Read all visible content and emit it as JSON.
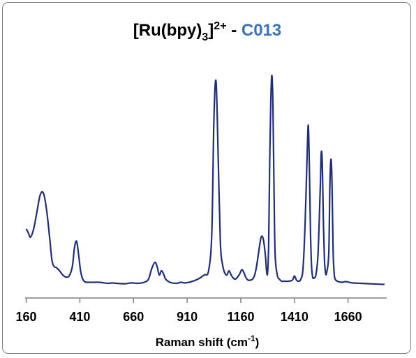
{
  "chart_data": {
    "type": "line",
    "title": {
      "main": "[Ru(bpy)",
      "sub": "3",
      "close": "]",
      "sup": "2+",
      "separator": " - ",
      "sample": "C013"
    },
    "title_colors": {
      "main": "#000000",
      "sample": "#3b73b9"
    },
    "xlabel": {
      "prefix": "Raman shift (cm",
      "sup": "-1",
      "suffix": ")"
    },
    "ylabel": "",
    "xlim": [
      155,
      1840
    ],
    "ylim": [
      0,
      1.03
    ],
    "xticks": [
      160,
      410,
      660,
      910,
      1160,
      1410,
      1660
    ],
    "xtick_labels": [
      "160",
      "410",
      "660",
      "910",
      "1160",
      "1410",
      "1660"
    ],
    "grid": false,
    "line_color": "#1f2f73",
    "series": [
      {
        "x": [
          160,
          170,
          180,
          195,
          210,
          225,
          240,
          255,
          270,
          280,
          290,
          300,
          315,
          330,
          345,
          360,
          375,
          385,
          395,
          405,
          415,
          430,
          460,
          500,
          540,
          560,
          580,
          620,
          650,
          680,
          710,
          730,
          745,
          760,
          770,
          780,
          790,
          800,
          810,
          830,
          860,
          880,
          900,
          930,
          960,
          990,
          1010,
          1025,
          1035,
          1045,
          1055,
          1065,
          1075,
          1085,
          1095,
          1105,
          1115,
          1125,
          1135,
          1145,
          1155,
          1165,
          1175,
          1185,
          1195,
          1205,
          1215,
          1225,
          1235,
          1245,
          1255,
          1265,
          1275,
          1280,
          1285,
          1290,
          1295,
          1300,
          1305,
          1310,
          1315,
          1320,
          1330,
          1340,
          1350,
          1360,
          1380,
          1400,
          1410,
          1420,
          1430,
          1440,
          1450,
          1460,
          1470,
          1475,
          1480,
          1485,
          1490,
          1495,
          1500,
          1510,
          1520,
          1530,
          1535,
          1540,
          1545,
          1550,
          1555,
          1560,
          1570,
          1575,
          1580,
          1585,
          1590,
          1595,
          1600,
          1610,
          1630,
          1650,
          1680,
          1720,
          1760,
          1800,
          1830
        ],
        "values": [
          0.27,
          0.25,
          0.23,
          0.27,
          0.35,
          0.43,
          0.44,
          0.36,
          0.22,
          0.12,
          0.09,
          0.085,
          0.07,
          0.05,
          0.04,
          0.045,
          0.09,
          0.18,
          0.21,
          0.14,
          0.06,
          0.02,
          0.015,
          0.015,
          0.01,
          0.012,
          0.01,
          0.008,
          0.012,
          0.01,
          0.015,
          0.03,
          0.08,
          0.11,
          0.09,
          0.05,
          0.07,
          0.055,
          0.03,
          0.015,
          0.01,
          0.015,
          0.012,
          0.018,
          0.03,
          0.05,
          0.07,
          0.25,
          0.8,
          0.97,
          0.6,
          0.2,
          0.1,
          0.06,
          0.05,
          0.07,
          0.05,
          0.035,
          0.03,
          0.04,
          0.055,
          0.075,
          0.06,
          0.035,
          0.025,
          0.025,
          0.03,
          0.05,
          0.1,
          0.17,
          0.23,
          0.22,
          0.14,
          0.07,
          0.06,
          0.2,
          0.6,
          0.88,
          1.0,
          0.85,
          0.45,
          0.15,
          0.05,
          0.03,
          0.02,
          0.02,
          0.02,
          0.025,
          0.045,
          0.025,
          0.02,
          0.03,
          0.08,
          0.3,
          0.65,
          0.76,
          0.55,
          0.25,
          0.09,
          0.04,
          0.035,
          0.05,
          0.15,
          0.45,
          0.63,
          0.58,
          0.3,
          0.12,
          0.06,
          0.06,
          0.15,
          0.46,
          0.6,
          0.5,
          0.18,
          0.06,
          0.03,
          0.02,
          0.015,
          0.018,
          0.012,
          0.01,
          0.008,
          0.006,
          0.005
        ]
      }
    ]
  }
}
